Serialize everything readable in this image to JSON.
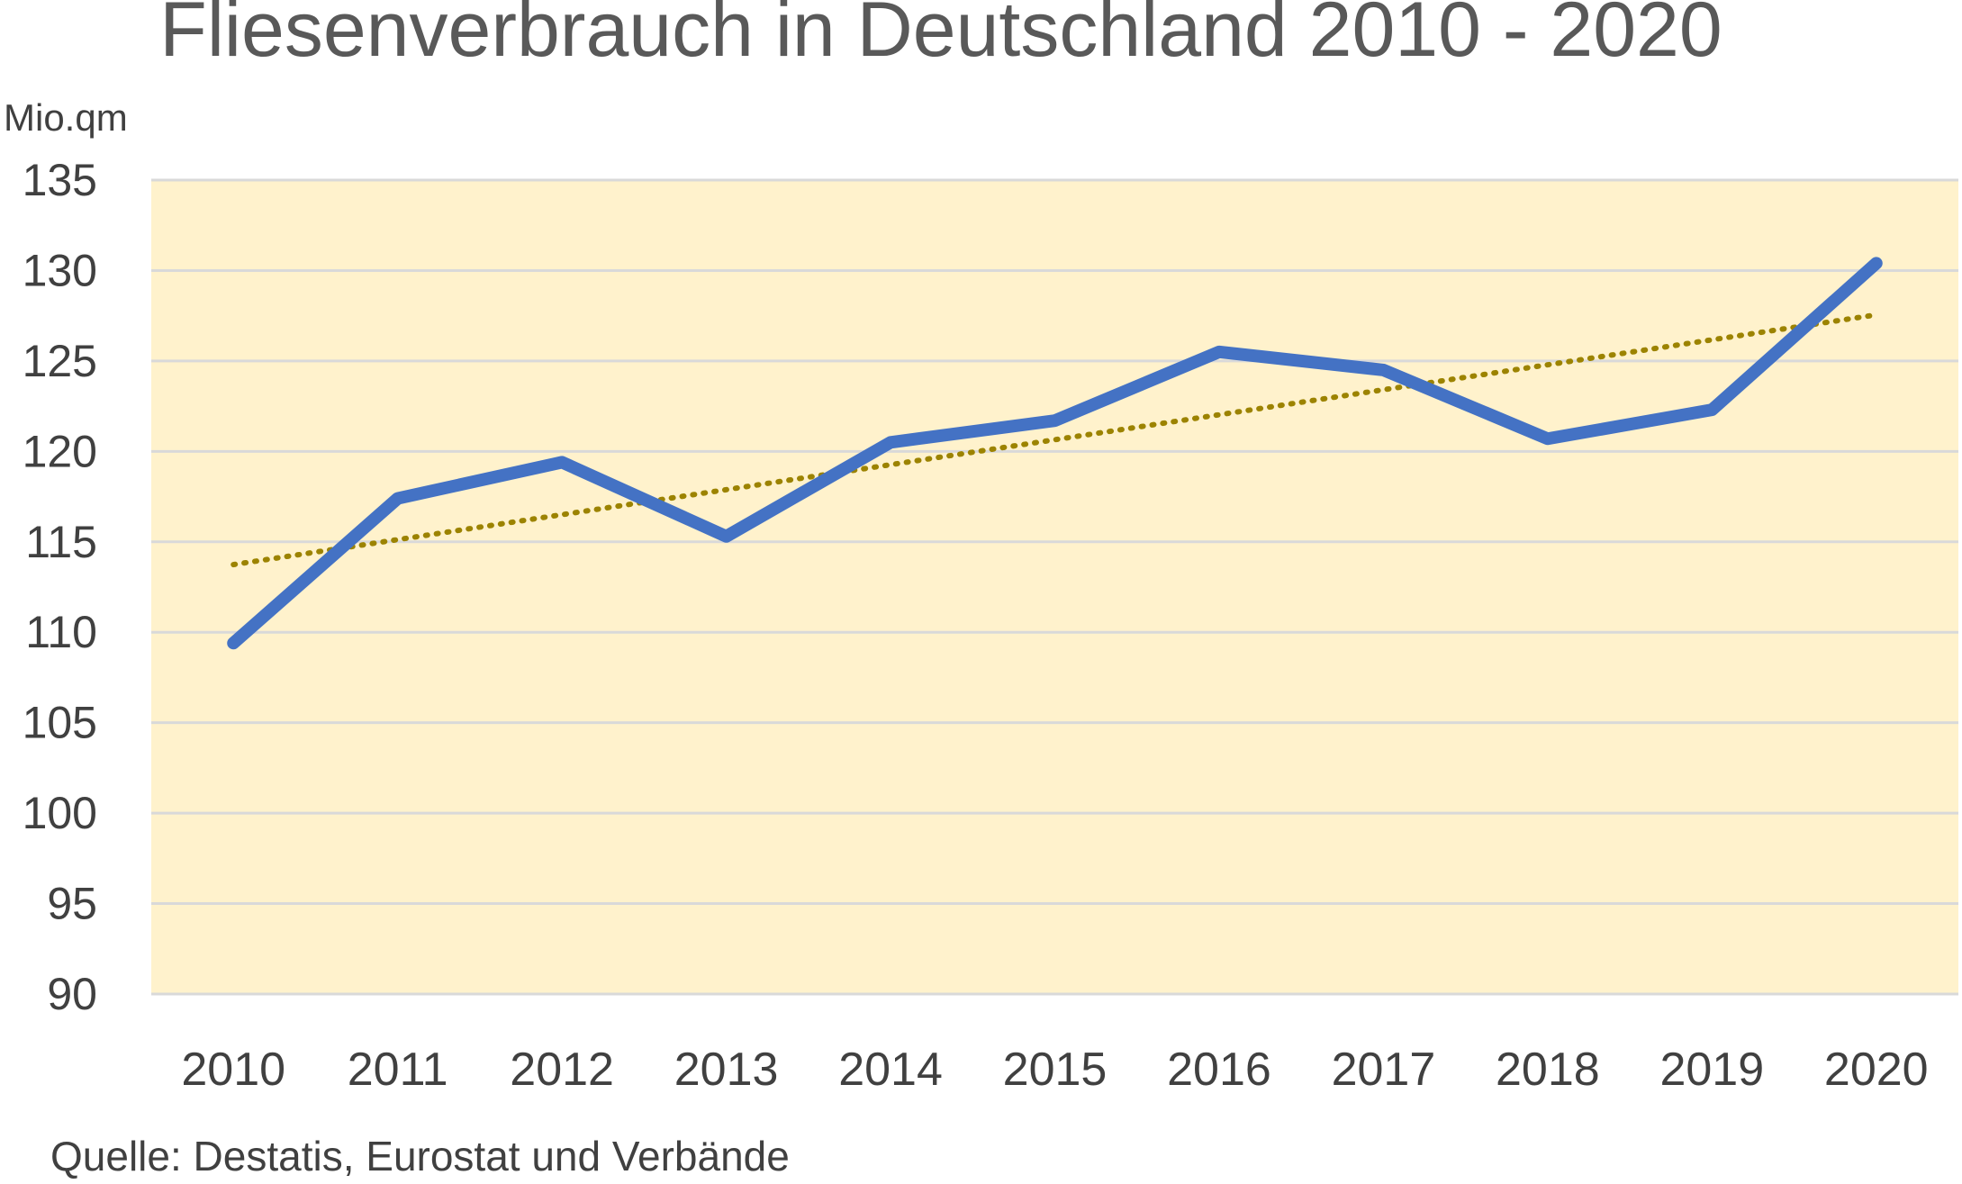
{
  "chart_data": {
    "type": "line",
    "title": "Fliesenverbrauch  in Deutschland 2010 - 2020",
    "ylabel": "Mio.qm",
    "xlabel": "",
    "categories": [
      "2010",
      "2011",
      "2012",
      "2013",
      "2014",
      "2015",
      "2016",
      "2017",
      "2018",
      "2019",
      "2020"
    ],
    "series": [
      {
        "values": [
          109.4,
          117.4,
          119.4,
          115.3,
          120.5,
          121.7,
          125.5,
          124.5,
          120.7,
          122.3,
          130.4
        ]
      }
    ],
    "trendline": {
      "style": "dotted",
      "type": "linear"
    },
    "ylim": [
      90,
      135
    ],
    "yticks": [
      90,
      95,
      100,
      105,
      110,
      115,
      120,
      125,
      130,
      135
    ],
    "grid": true,
    "legend": "none",
    "colors": {
      "line": "#4472C4",
      "trend": "#9C8300",
      "plot_background": "#FFF2CC",
      "grid": "#D9D9D9"
    },
    "source": "Quelle: Destatis, Eurostat und Verbände"
  }
}
